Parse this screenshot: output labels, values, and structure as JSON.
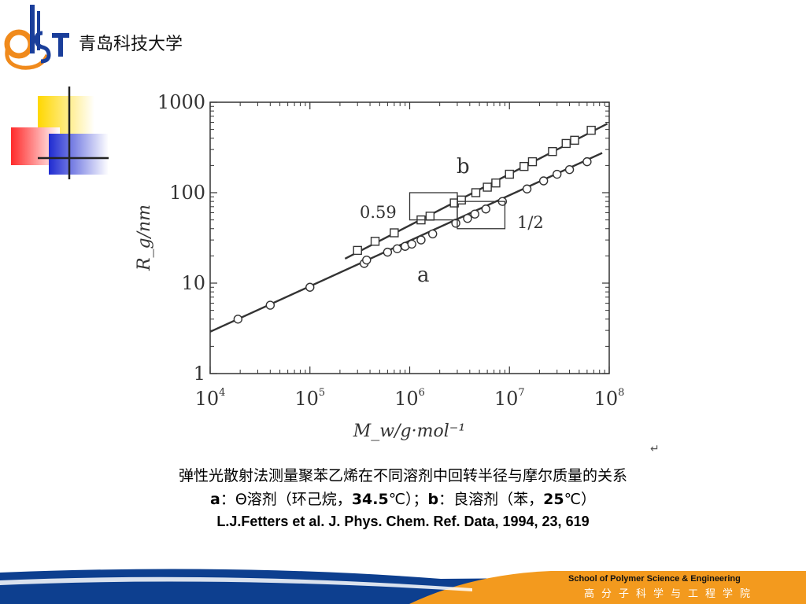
{
  "header": {
    "logo_text": "QUST",
    "university_name": "青岛科技大学"
  },
  "chart_data": {
    "type": "scatter",
    "title": "",
    "xlabel": "M_w/g·mol⁻¹",
    "ylabel": "R_g/nm",
    "x_scale": "log",
    "y_scale": "log",
    "xlim": [
      10000,
      100000000
    ],
    "ylim": [
      1,
      1000
    ],
    "x_ticks": [
      {
        "base": "10",
        "exp": "4"
      },
      {
        "base": "10",
        "exp": "5"
      },
      {
        "base": "10",
        "exp": "6"
      },
      {
        "base": "10",
        "exp": "7"
      },
      {
        "base": "10",
        "exp": "8"
      }
    ],
    "y_ticks": [
      "1",
      "10",
      "100",
      "1000"
    ],
    "series": [
      {
        "name": "a",
        "marker": "circle",
        "x": [
          19000,
          40000,
          100000,
          350000,
          370000,
          600000,
          750000,
          900000,
          1050000,
          1300000,
          1700000,
          2900000,
          3800000,
          4500000,
          5800000,
          8500000,
          15000000,
          22000000,
          30000000,
          40000000,
          60000000
        ],
        "y": [
          4.0,
          5.7,
          9.0,
          16.5,
          18.0,
          22.0,
          24.0,
          25.5,
          27.0,
          30.0,
          35.0,
          46.0,
          52.0,
          58.0,
          66.0,
          80.0,
          110.0,
          135.0,
          160.0,
          180.0,
          220.0
        ],
        "fit_line": {
          "x": [
            10000,
            85000000
          ],
          "y": [
            2.9,
            275.0
          ]
        }
      },
      {
        "name": "b",
        "marker": "square",
        "x": [
          300000,
          450000,
          700000,
          1300000,
          1600000,
          2800000,
          3300000,
          4600000,
          6000000,
          7300000,
          10000000,
          14000000,
          17000000,
          27000000,
          37000000,
          45000000,
          66000000
        ],
        "y": [
          23.0,
          29.0,
          36.0,
          50.0,
          55.0,
          77.0,
          83.0,
          100.0,
          115.0,
          128.0,
          160.0,
          195.0,
          220.0,
          285.0,
          350.0,
          380.0,
          490.0
        ]
      }
    ],
    "annotations": {
      "slope_b": "0.59",
      "slope_a": "1/2",
      "label_a": "a",
      "label_b": "b"
    },
    "grid": false,
    "legend": "none"
  },
  "caption": {
    "line1": "弹性光散射法测量聚苯乙烯在不同溶剂中回转半径与摩尔质量的关系",
    "line2_a_label": "a",
    "line2_a_text": "：Θ溶剂（环己烷，",
    "line2_a_temp": "34.5",
    "line2_a_unit": "℃）；",
    "line2_b_label": "b",
    "line2_b_text": "：良溶剂（苯，",
    "line2_b_temp": "25",
    "line2_b_unit": "℃）",
    "reference": "L.J.Fetters et al. J. Phys. Chem. Ref. Data, 1994, 23, 619"
  },
  "footer": {
    "school_en": "School of Polymer Science & Engineering",
    "school_cn": "高分子科学与工程学院"
  },
  "colors": {
    "logo_blue": "#1a3e9a",
    "logo_orange": "#f08a1c",
    "deco_yellow": "#ffd700",
    "deco_red": "#ff2a2a",
    "deco_blue": "#1f2bd1",
    "footer_blue": "#0d3f8f",
    "footer_orange": "#f39a1e",
    "plot_line": "#333333"
  }
}
